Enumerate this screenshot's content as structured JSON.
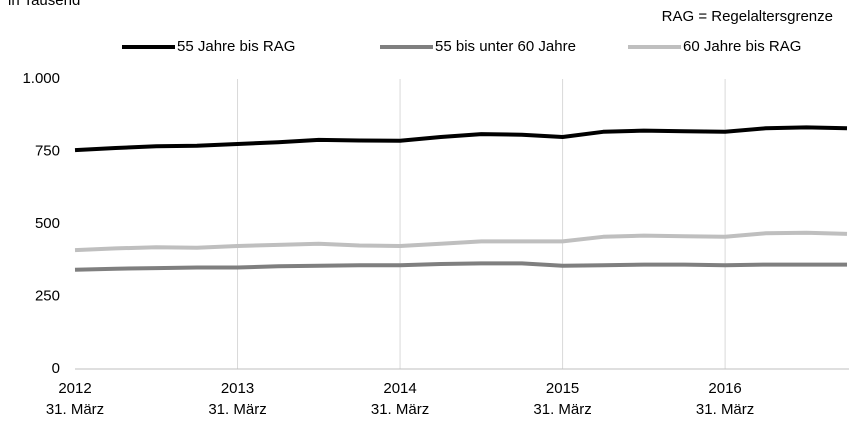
{
  "chart_data": {
    "type": "line",
    "subtitle": "in Tausend",
    "annotation": "RAG = Regelaltersgrenze",
    "categories": [
      [
        "2012",
        "31. März"
      ],
      null,
      null,
      null,
      [
        "2013",
        "31. März"
      ],
      null,
      null,
      null,
      [
        "2014",
        "31. März"
      ],
      null,
      null,
      null,
      [
        "2015",
        "31. März"
      ],
      null,
      null,
      null,
      [
        "2016",
        "31. März"
      ],
      null,
      null,
      null
    ],
    "series": [
      {
        "name": "55 Jahre bis RAG",
        "color": "#000000",
        "values": [
          755,
          762,
          768,
          770,
          776,
          782,
          790,
          788,
          787,
          800,
          810,
          808,
          800,
          818,
          822,
          820,
          818,
          830,
          833,
          830
        ]
      },
      {
        "name": "55 bis unter 60 Jahre",
        "color": "#7f7f7f",
        "values": [
          342,
          346,
          348,
          350,
          350,
          354,
          356,
          358,
          358,
          362,
          364,
          364,
          356,
          358,
          360,
          360,
          358,
          360,
          360,
          360
        ]
      },
      {
        "name": "60 Jahre bis RAG",
        "color": "#bfbfbf",
        "values": [
          410,
          416,
          420,
          418,
          424,
          428,
          432,
          426,
          424,
          432,
          440,
          440,
          440,
          456,
          460,
          458,
          456,
          468,
          470,
          466
        ]
      }
    ],
    "ylim": [
      0,
      1000
    ],
    "yticks": [
      0,
      250,
      500,
      750,
      {
        "value": 1000,
        "label": "1.000"
      }
    ],
    "grid": "x",
    "legend": "top"
  }
}
